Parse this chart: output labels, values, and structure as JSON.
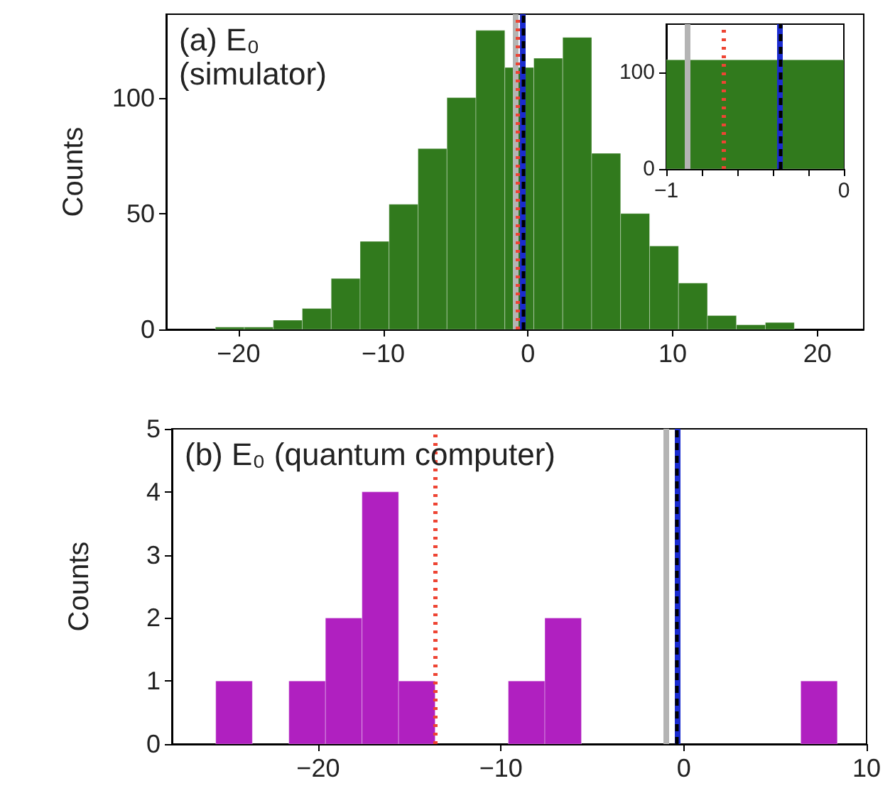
{
  "chart_data": [
    {
      "type": "histogram",
      "title": "(a) E₀",
      "subtitle": "(simulator)",
      "ylabel": "Counts",
      "color": "#317a1d",
      "bins": [
        -21.6,
        -19.6,
        -17.6,
        -15.6,
        -13.6,
        -11.6,
        -9.6,
        -7.6,
        -5.6,
        -3.6,
        -1.6,
        0.4,
        2.4,
        4.4,
        6.4,
        8.4,
        10.4,
        12.4,
        14.4,
        16.4,
        18.4
      ],
      "values": [
        1,
        1,
        4,
        9,
        22,
        38,
        54,
        78,
        100,
        129,
        113,
        117,
        126,
        76,
        50,
        36,
        20,
        6,
        2,
        3
      ],
      "xlim": [
        -25,
        23.2
      ],
      "xticks": [
        -20,
        -10,
        0,
        10,
        20
      ],
      "ylim": [
        0,
        136
      ],
      "yticks": [
        0,
        50,
        100
      ],
      "ref_lines": [
        {
          "axis": "x",
          "value": -0.88,
          "color": "#b4b4b4",
          "line_style": "solid"
        },
        {
          "axis": "x",
          "value": -0.68,
          "color": "#ee4433",
          "line_style": "dotted"
        },
        {
          "axis": "x",
          "value": -0.36,
          "color": "#1a2bd0",
          "line_style": "solid"
        },
        {
          "axis": "x",
          "value": -0.36,
          "color": "#000000",
          "line_style": "dashed"
        }
      ]
    },
    {
      "type": "histogram",
      "color": "#317a1d",
      "bins": [
        -1.6,
        0.4
      ],
      "values": [
        113
      ],
      "xlim": [
        -1,
        0
      ],
      "xticks": [
        -1,
        {
          "value": -0.8,
          "label": null
        },
        {
          "value": -0.6,
          "label": null
        },
        {
          "value": -0.4,
          "label": null
        },
        {
          "value": -0.2,
          "label": null
        },
        0
      ],
      "ylim": [
        0,
        150
      ],
      "yticks": [
        0,
        100
      ],
      "ref_lines": [
        {
          "axis": "x",
          "value": -0.88,
          "color": "#b4b4b4",
          "line_style": "solid"
        },
        {
          "axis": "x",
          "value": -0.68,
          "color": "#ee4433",
          "line_style": "dotted"
        },
        {
          "axis": "x",
          "value": -0.36,
          "color": "#1a2bd0",
          "line_style": "solid"
        },
        {
          "axis": "x",
          "value": -0.36,
          "color": "#000000",
          "line_style": "dashed"
        }
      ]
    },
    {
      "type": "histogram",
      "title": "(b) E₀ (quantum computer)",
      "ylabel": "Counts",
      "color": "#b020c0",
      "bins": [
        -25.6,
        -23.6,
        -21.6,
        -19.6,
        -17.6,
        -15.6,
        -13.6,
        -11.6,
        -9.6,
        -7.6,
        -5.6,
        -3.6,
        -1.6,
        0.4,
        2.4,
        4.4,
        6.4,
        8.4
      ],
      "values": [
        1,
        0,
        1,
        2,
        4,
        1,
        0,
        0,
        1,
        2,
        0,
        0,
        0,
        0,
        0,
        0,
        1
      ],
      "xlim": [
        -28,
        10
      ],
      "xticks": [
        -20,
        -10,
        0,
        10
      ],
      "ylim": [
        0,
        5
      ],
      "yticks": [
        0,
        1,
        2,
        3,
        4,
        5
      ],
      "ref_lines": [
        {
          "axis": "x",
          "value": -0.95,
          "color": "#b4b4b4",
          "line_style": "solid"
        },
        {
          "axis": "x",
          "value": -13.6,
          "color": "#ee4433",
          "line_style": "dotted"
        },
        {
          "axis": "x",
          "value": -0.36,
          "color": "#1a2bd0",
          "line_style": "solid"
        },
        {
          "axis": "x",
          "value": -0.36,
          "color": "#000000",
          "line_style": "dashed"
        }
      ]
    }
  ]
}
